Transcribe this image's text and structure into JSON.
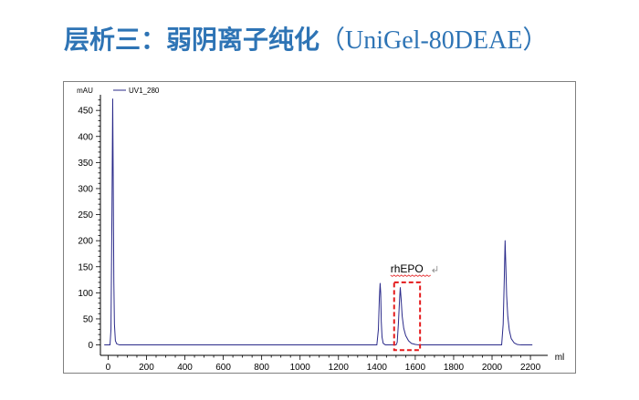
{
  "slide": {
    "title_cn": "层析三：弱阴离子纯化",
    "title_latin": "（UniGel-80DEAE）"
  },
  "chart_data": {
    "type": "line",
    "y_unit": "mAU",
    "x_unit": "ml",
    "xlim": [
      -40,
      2290
    ],
    "ylim": [
      -20,
      480
    ],
    "x_ticks": [
      0,
      200,
      400,
      600,
      800,
      1000,
      1200,
      1400,
      1600,
      1800,
      2000,
      2200
    ],
    "y_ticks": [
      0,
      50,
      100,
      150,
      200,
      250,
      300,
      350,
      400,
      450
    ],
    "legend": "top-left",
    "series": [
      {
        "name": "UV1_280",
        "color": "#2a2a8a",
        "points": [
          [
            -20,
            0
          ],
          [
            10,
            0
          ],
          [
            15,
            30
          ],
          [
            20,
            250
          ],
          [
            24,
            472
          ],
          [
            27,
            300
          ],
          [
            30,
            120
          ],
          [
            33,
            40
          ],
          [
            38,
            8
          ],
          [
            45,
            2
          ],
          [
            60,
            0
          ],
          [
            1400,
            0
          ],
          [
            1408,
            30
          ],
          [
            1413,
            90
          ],
          [
            1417,
            118
          ],
          [
            1420,
            100
          ],
          [
            1423,
            45
          ],
          [
            1427,
            15
          ],
          [
            1433,
            3
          ],
          [
            1445,
            0
          ],
          [
            1500,
            0
          ],
          [
            1506,
            5
          ],
          [
            1512,
            40
          ],
          [
            1518,
            85
          ],
          [
            1522,
            110
          ],
          [
            1526,
            90
          ],
          [
            1532,
            55
          ],
          [
            1540,
            32
          ],
          [
            1550,
            18
          ],
          [
            1565,
            8
          ],
          [
            1580,
            3
          ],
          [
            1600,
            1
          ],
          [
            1620,
            0
          ],
          [
            2050,
            0
          ],
          [
            2058,
            40
          ],
          [
            2064,
            130
          ],
          [
            2068,
            200
          ],
          [
            2072,
            150
          ],
          [
            2076,
            95
          ],
          [
            2082,
            55
          ],
          [
            2090,
            28
          ],
          [
            2100,
            12
          ],
          [
            2115,
            4
          ],
          [
            2130,
            1
          ],
          [
            2150,
            0
          ],
          [
            2210,
            0
          ]
        ]
      }
    ],
    "annotation": {
      "label": "rhEPO",
      "box_x": [
        1490,
        1625
      ],
      "box_y": [
        -10,
        120
      ],
      "box_color": "#e41a1c"
    }
  }
}
